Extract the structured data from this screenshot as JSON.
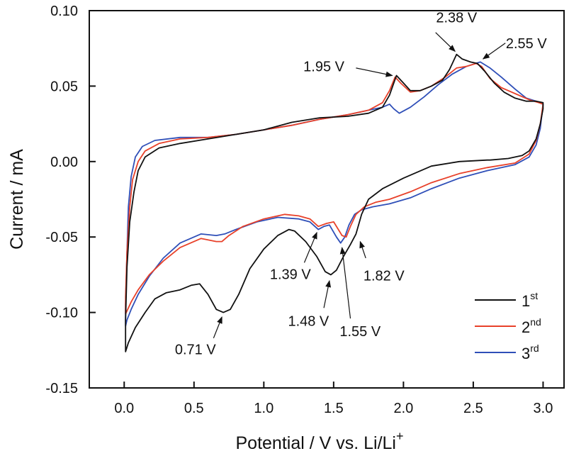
{
  "chart_data": {
    "type": "line",
    "title": "",
    "xlabel": "Potential / V vs. Li/Li",
    "xlabel_superscript": "+",
    "ylabel": "Current / mA",
    "xlim": [
      -0.25,
      3.15
    ],
    "ylim": [
      -0.15,
      0.1
    ],
    "grid": false,
    "legend_position": "bottom-right",
    "x_ticks": [
      0.0,
      0.5,
      1.0,
      1.5,
      2.0,
      2.5,
      3.0
    ],
    "x_tick_labels": [
      "0.0",
      "0.5",
      "1.0",
      "1.5",
      "2.0",
      "2.5",
      "3.0"
    ],
    "y_ticks": [
      0.1,
      0.05,
      0.0,
      -0.05,
      -0.1,
      -0.15
    ],
    "y_tick_labels": [
      "0.10",
      "0.05",
      "0.00",
      "-0.05",
      "-0.10",
      "-0.15"
    ],
    "series": [
      {
        "name": "1st",
        "label_base": "1",
        "label_sup": "st",
        "color": "#111111",
        "points": [
          [
            2.62,
            0.001
          ],
          [
            2.6,
            0.001
          ],
          [
            2.4,
            0.0
          ],
          [
            2.2,
            -0.003
          ],
          [
            2.0,
            -0.011
          ],
          [
            1.85,
            -0.018
          ],
          [
            1.75,
            -0.025
          ],
          [
            1.7,
            -0.035
          ],
          [
            1.66,
            -0.048
          ],
          [
            1.62,
            -0.055
          ],
          [
            1.57,
            -0.063
          ],
          [
            1.52,
            -0.072
          ],
          [
            1.48,
            -0.075
          ],
          [
            1.44,
            -0.073
          ],
          [
            1.38,
            -0.063
          ],
          [
            1.3,
            -0.053
          ],
          [
            1.22,
            -0.046
          ],
          [
            1.18,
            -0.045
          ],
          [
            1.1,
            -0.049
          ],
          [
            1.0,
            -0.058
          ],
          [
            0.9,
            -0.071
          ],
          [
            0.82,
            -0.088
          ],
          [
            0.76,
            -0.098
          ],
          [
            0.71,
            -0.1
          ],
          [
            0.66,
            -0.098
          ],
          [
            0.6,
            -0.088
          ],
          [
            0.54,
            -0.081
          ],
          [
            0.48,
            -0.082
          ],
          [
            0.4,
            -0.085
          ],
          [
            0.3,
            -0.087
          ],
          [
            0.22,
            -0.091
          ],
          [
            0.15,
            -0.1
          ],
          [
            0.08,
            -0.11
          ],
          [
            0.03,
            -0.12
          ],
          [
            0.01,
            -0.126
          ],
          [
            0.01,
            -0.105
          ],
          [
            0.02,
            -0.07
          ],
          [
            0.04,
            -0.04
          ],
          [
            0.07,
            -0.02
          ],
          [
            0.1,
            -0.006
          ],
          [
            0.15,
            0.003
          ],
          [
            0.25,
            0.009
          ],
          [
            0.4,
            0.012
          ],
          [
            0.6,
            0.015
          ],
          [
            0.8,
            0.018
          ],
          [
            1.0,
            0.021
          ],
          [
            1.2,
            0.026
          ],
          [
            1.4,
            0.029
          ],
          [
            1.6,
            0.03
          ],
          [
            1.75,
            0.032
          ],
          [
            1.85,
            0.036
          ],
          [
            1.9,
            0.044
          ],
          [
            1.95,
            0.057
          ],
          [
            2.0,
            0.052
          ],
          [
            2.05,
            0.047
          ],
          [
            2.12,
            0.047
          ],
          [
            2.2,
            0.05
          ],
          [
            2.28,
            0.054
          ],
          [
            2.33,
            0.061
          ],
          [
            2.38,
            0.071
          ],
          [
            2.42,
            0.068
          ],
          [
            2.48,
            0.066
          ],
          [
            2.53,
            0.065
          ],
          [
            2.58,
            0.06
          ],
          [
            2.65,
            0.052
          ],
          [
            2.72,
            0.046
          ],
          [
            2.8,
            0.042
          ],
          [
            2.88,
            0.04
          ],
          [
            2.95,
            0.04
          ],
          [
            3.0,
            0.039
          ],
          [
            3.0,
            0.035
          ],
          [
            2.98,
            0.025
          ],
          [
            2.95,
            0.015
          ],
          [
            2.9,
            0.007
          ],
          [
            2.85,
            0.004
          ],
          [
            2.75,
            0.002
          ],
          [
            2.62,
            0.001
          ]
        ]
      },
      {
        "name": "2nd",
        "label_base": "2",
        "label_sup": "nd",
        "color": "#e8412a",
        "points": [
          [
            3.0,
            0.038
          ],
          [
            2.98,
            0.025
          ],
          [
            2.95,
            0.014
          ],
          [
            2.9,
            0.005
          ],
          [
            2.8,
            -0.001
          ],
          [
            2.6,
            -0.004
          ],
          [
            2.4,
            -0.008
          ],
          [
            2.2,
            -0.014
          ],
          [
            2.05,
            -0.02
          ],
          [
            1.9,
            -0.025
          ],
          [
            1.8,
            -0.027
          ],
          [
            1.72,
            -0.03
          ],
          [
            1.66,
            -0.035
          ],
          [
            1.62,
            -0.043
          ],
          [
            1.59,
            -0.05
          ],
          [
            1.56,
            -0.049
          ],
          [
            1.5,
            -0.04
          ],
          [
            1.45,
            -0.041
          ],
          [
            1.39,
            -0.043
          ],
          [
            1.33,
            -0.038
          ],
          [
            1.25,
            -0.036
          ],
          [
            1.15,
            -0.035
          ],
          [
            1.0,
            -0.038
          ],
          [
            0.85,
            -0.043
          ],
          [
            0.75,
            -0.049
          ],
          [
            0.7,
            -0.053
          ],
          [
            0.66,
            -0.053
          ],
          [
            0.55,
            -0.051
          ],
          [
            0.4,
            -0.057
          ],
          [
            0.28,
            -0.066
          ],
          [
            0.18,
            -0.075
          ],
          [
            0.1,
            -0.085
          ],
          [
            0.05,
            -0.093
          ],
          [
            0.02,
            -0.099
          ],
          [
            0.01,
            -0.101
          ],
          [
            0.01,
            -0.09
          ],
          [
            0.02,
            -0.06
          ],
          [
            0.04,
            -0.03
          ],
          [
            0.06,
            -0.012
          ],
          [
            0.1,
            0.0
          ],
          [
            0.15,
            0.007
          ],
          [
            0.25,
            0.012
          ],
          [
            0.4,
            0.015
          ],
          [
            0.6,
            0.016
          ],
          [
            0.8,
            0.018
          ],
          [
            1.0,
            0.021
          ],
          [
            1.2,
            0.024
          ],
          [
            1.4,
            0.028
          ],
          [
            1.6,
            0.031
          ],
          [
            1.75,
            0.034
          ],
          [
            1.85,
            0.039
          ],
          [
            1.9,
            0.047
          ],
          [
            1.94,
            0.056
          ],
          [
            1.98,
            0.052
          ],
          [
            2.05,
            0.046
          ],
          [
            2.12,
            0.047
          ],
          [
            2.2,
            0.05
          ],
          [
            2.3,
            0.056
          ],
          [
            2.38,
            0.062
          ],
          [
            2.45,
            0.063
          ],
          [
            2.52,
            0.065
          ],
          [
            2.56,
            0.063
          ],
          [
            2.62,
            0.055
          ],
          [
            2.7,
            0.049
          ],
          [
            2.8,
            0.045
          ],
          [
            2.9,
            0.041
          ],
          [
            2.97,
            0.039
          ],
          [
            3.0,
            0.038
          ]
        ]
      },
      {
        "name": "3rd",
        "label_base": "3",
        "label_sup": "rd",
        "color": "#2f4fb8",
        "points": [
          [
            3.0,
            0.038
          ],
          [
            2.98,
            0.022
          ],
          [
            2.95,
            0.011
          ],
          [
            2.9,
            0.003
          ],
          [
            2.8,
            -0.002
          ],
          [
            2.6,
            -0.006
          ],
          [
            2.4,
            -0.011
          ],
          [
            2.2,
            -0.018
          ],
          [
            2.05,
            -0.024
          ],
          [
            1.9,
            -0.028
          ],
          [
            1.78,
            -0.03
          ],
          [
            1.7,
            -0.032
          ],
          [
            1.65,
            -0.035
          ],
          [
            1.61,
            -0.042
          ],
          [
            1.58,
            -0.05
          ],
          [
            1.55,
            -0.054
          ],
          [
            1.52,
            -0.05
          ],
          [
            1.47,
            -0.042
          ],
          [
            1.43,
            -0.043
          ],
          [
            1.39,
            -0.045
          ],
          [
            1.33,
            -0.04
          ],
          [
            1.25,
            -0.038
          ],
          [
            1.1,
            -0.037
          ],
          [
            0.95,
            -0.04
          ],
          [
            0.8,
            -0.045
          ],
          [
            0.72,
            -0.048
          ],
          [
            0.66,
            -0.049
          ],
          [
            0.55,
            -0.048
          ],
          [
            0.4,
            -0.054
          ],
          [
            0.28,
            -0.064
          ],
          [
            0.18,
            -0.076
          ],
          [
            0.1,
            -0.088
          ],
          [
            0.05,
            -0.098
          ],
          [
            0.02,
            -0.105
          ],
          [
            0.01,
            -0.109
          ],
          [
            0.01,
            -0.095
          ],
          [
            0.02,
            -0.06
          ],
          [
            0.03,
            -0.03
          ],
          [
            0.05,
            -0.01
          ],
          [
            0.08,
            0.003
          ],
          [
            0.13,
            0.01
          ],
          [
            0.22,
            0.014
          ],
          [
            0.4,
            0.016
          ],
          [
            0.6,
            0.016
          ],
          [
            0.8,
            0.018
          ],
          [
            1.0,
            0.021
          ],
          [
            1.2,
            0.024
          ],
          [
            1.4,
            0.028
          ],
          [
            1.6,
            0.031
          ],
          [
            1.75,
            0.034
          ],
          [
            1.85,
            0.036
          ],
          [
            1.9,
            0.038
          ],
          [
            1.93,
            0.035
          ],
          [
            1.97,
            0.032
          ],
          [
            2.05,
            0.036
          ],
          [
            2.15,
            0.043
          ],
          [
            2.25,
            0.051
          ],
          [
            2.35,
            0.058
          ],
          [
            2.45,
            0.063
          ],
          [
            2.55,
            0.066
          ],
          [
            2.62,
            0.062
          ],
          [
            2.7,
            0.056
          ],
          [
            2.8,
            0.048
          ],
          [
            2.88,
            0.042
          ],
          [
            2.95,
            0.04
          ],
          [
            3.0,
            0.038
          ]
        ]
      }
    ],
    "annotations": [
      {
        "text": "1.95 V",
        "label_at": [
          1.43,
          0.063
        ],
        "arrow_from": [
          1.66,
          0.062
        ],
        "arrow_to": [
          1.92,
          0.057
        ],
        "anchor": "middle"
      },
      {
        "text": "2.38 V",
        "label_at": [
          2.38,
          0.0955
        ],
        "arrow_from": [
          2.23,
          0.0855
        ],
        "arrow_to": [
          2.37,
          0.073
        ],
        "anchor": "middle"
      },
      {
        "text": "2.55 V",
        "label_at": [
          2.88,
          0.0785
        ],
        "arrow_from": [
          2.73,
          0.0785
        ],
        "arrow_to": [
          2.57,
          0.068
        ],
        "anchor": "middle"
      },
      {
        "text": "1.39 V",
        "label_at": [
          1.19,
          -0.0745
        ],
        "arrow_from": [
          1.29,
          -0.067
        ],
        "arrow_to": [
          1.38,
          -0.047
        ],
        "anchor": "middle"
      },
      {
        "text": "1.48 V",
        "label_at": [
          1.32,
          -0.1055
        ],
        "arrow_from": [
          1.43,
          -0.097
        ],
        "arrow_to": [
          1.47,
          -0.079
        ],
        "anchor": "middle"
      },
      {
        "text": "1.55 V",
        "label_at": [
          1.69,
          -0.1125
        ],
        "arrow_from": [
          1.62,
          -0.104
        ],
        "arrow_to": [
          1.56,
          -0.057
        ],
        "anchor": "middle"
      },
      {
        "text": "1.82 V",
        "label_at": [
          1.86,
          -0.0755
        ],
        "arrow_from": [
          1.73,
          -0.064
        ],
        "arrow_to": [
          1.69,
          -0.053
        ],
        "anchor": "middle"
      },
      {
        "text": "0.71 V",
        "label_at": [
          0.51,
          -0.1245
        ],
        "arrow_from": [
          0.64,
          -0.117
        ],
        "arrow_to": [
          0.7,
          -0.103
        ],
        "anchor": "middle"
      }
    ]
  }
}
